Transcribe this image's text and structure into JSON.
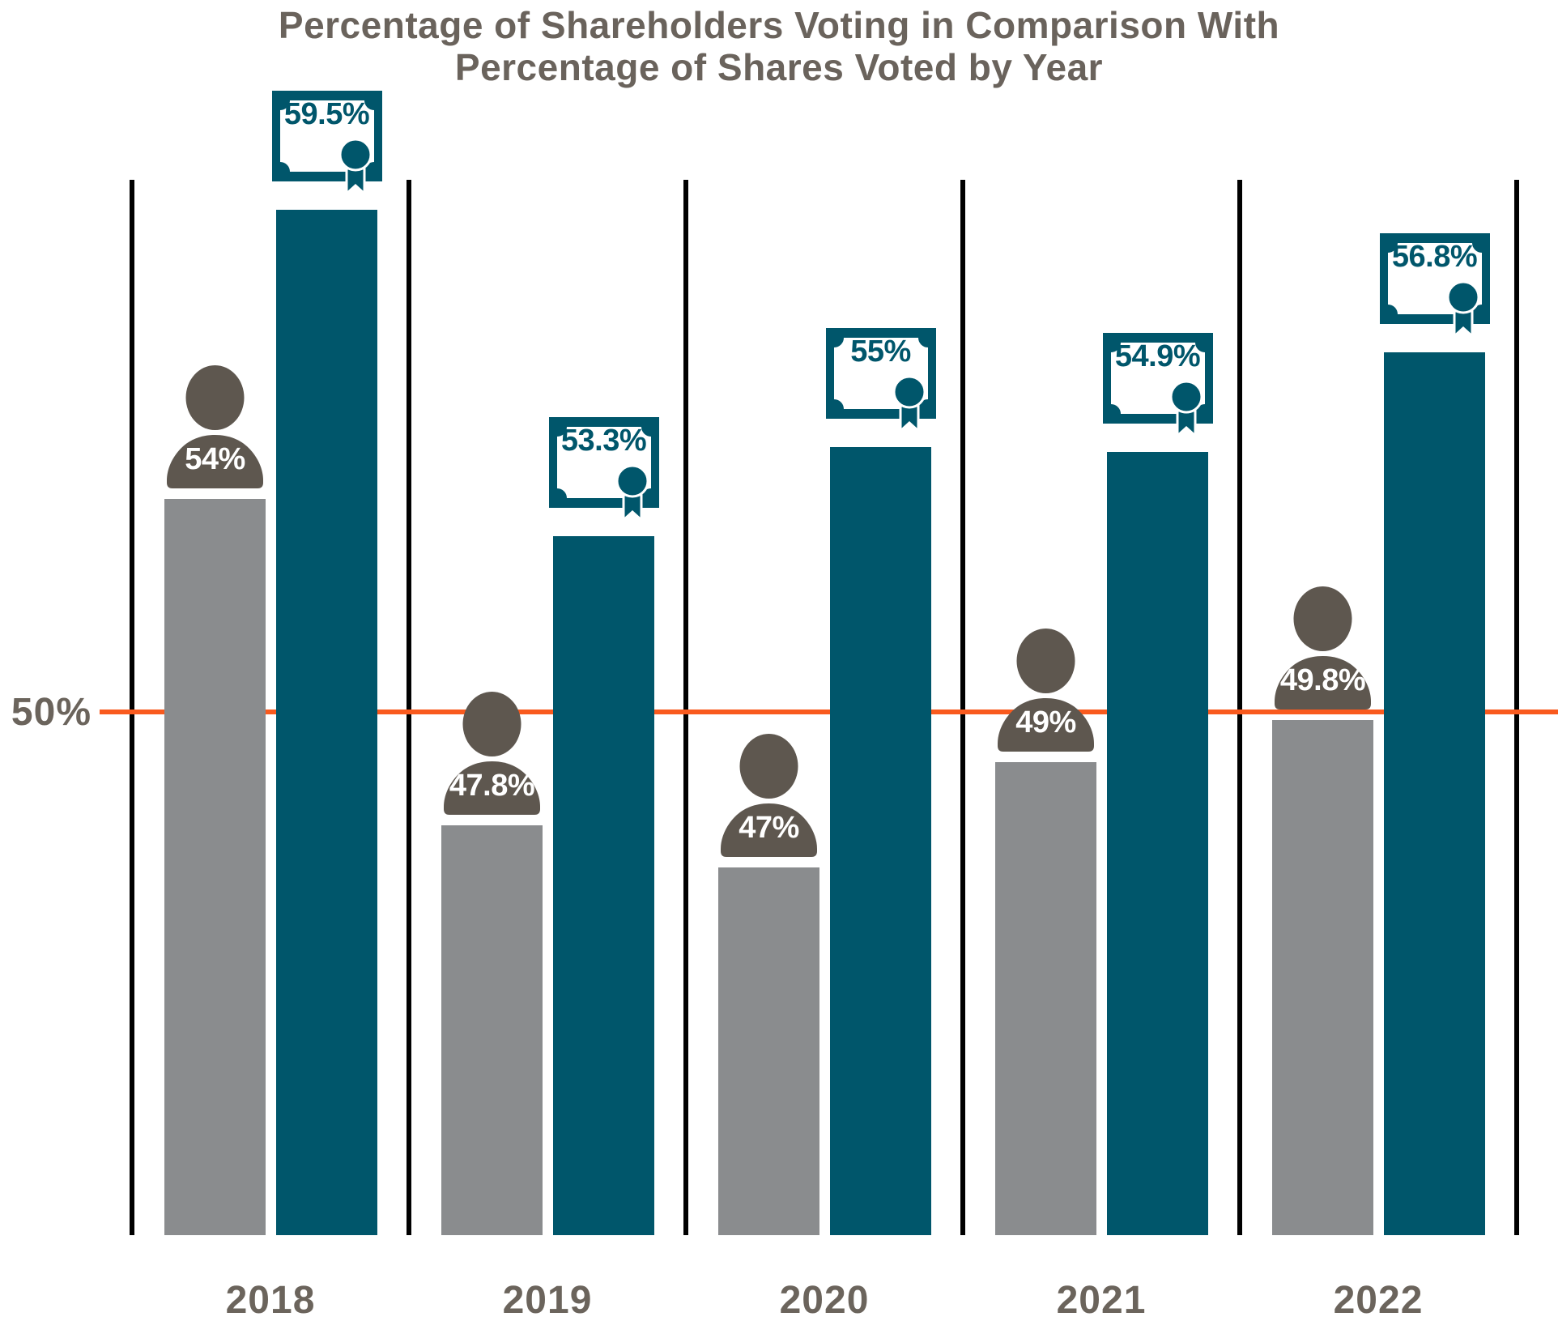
{
  "title_color": "#6A635C",
  "chart_data": {
    "type": "bar",
    "title": "Percentage of Shareholders Voting in Comparison With Percentage of Shares Voted by Year",
    "title_lines": [
      "Percentage of Shareholders Voting in Comparison With",
      "Percentage of Shares Voted by Year"
    ],
    "categories": [
      "2018",
      "2019",
      "2020",
      "2021",
      "2022"
    ],
    "series": [
      {
        "name": "Percentage of Shareholders Voting",
        "icon": "person-icon",
        "values": [
          54,
          47.8,
          47,
          49,
          49.8
        ],
        "labels": [
          "54%",
          "47.8%",
          "47%",
          "49%",
          "49.8%"
        ],
        "bar_color": "#8A8C8E",
        "icon_color": "#5E574F",
        "label_color": "#FFFFFF"
      },
      {
        "name": "Percentage of Shares Voted",
        "icon": "certificate-icon",
        "values": [
          59.5,
          53.3,
          55,
          54.9,
          56.8
        ],
        "labels": [
          "59.5%",
          "53.3%",
          "55%",
          "54.9%",
          "56.8%"
        ],
        "bar_color": "#00566B",
        "icon_color": "#00566B",
        "label_color": "#00566B"
      }
    ],
    "reference_line": {
      "value": 50,
      "label": "50%",
      "color": "#F95A1E"
    },
    "ylim": [
      40,
      60.1
    ],
    "grid": "vertical black separators between year groups",
    "legend_position": "none",
    "xlabel": "",
    "ylabel": ""
  }
}
